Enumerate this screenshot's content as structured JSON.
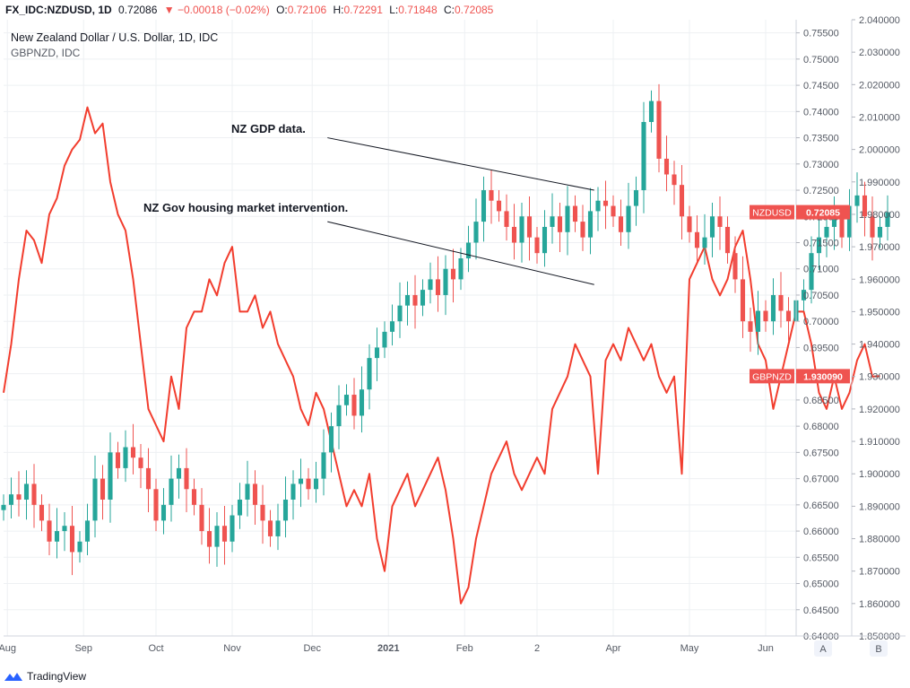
{
  "header": {
    "symbol": "FX_IDC:NZDUSD, 1D",
    "last": "0.72086",
    "change": "▼ −0.00018 (−0.02%)",
    "open_label": "O:",
    "open": "0.72106",
    "high_label": "H:",
    "high": "0.72291",
    "low_label": "L:",
    "low": "0.71848",
    "close_label": "C:",
    "close": "0.72085"
  },
  "legend": {
    "main": "New Zealand Dollar / U.S. Dollar, 1D, IDC",
    "compare": "GBPNZD, IDC"
  },
  "colors": {
    "up": "#26a69a",
    "down": "#ef5350",
    "compare_line": "#f23d2e",
    "grid": "#eef0f3",
    "axis_text": "#555a64"
  },
  "chart_data": {
    "type": "line",
    "title": "New Zealand Dollar / U.S. Dollar, 1D, IDC",
    "axis_a": {
      "name": "A",
      "min": 0.64,
      "max": 0.7575,
      "ticks": [
        "0.64000",
        "0.64500",
        "0.65000",
        "0.65500",
        "0.66000",
        "0.66500",
        "0.67000",
        "0.67500",
        "0.68000",
        "0.68500",
        "0.69000",
        "0.69500",
        "0.70000",
        "0.70500",
        "0.71000",
        "0.71500",
        "0.72000",
        "0.72500",
        "0.73000",
        "0.73500",
        "0.74000",
        "0.74500",
        "0.75000",
        "0.75500"
      ]
    },
    "axis_b": {
      "name": "B",
      "min": 1.85,
      "max": 2.04,
      "ticks": [
        "1.850000",
        "1.860000",
        "1.870000",
        "1.880000",
        "1.890000",
        "1.900000",
        "1.910000",
        "1.920000",
        "1.930000",
        "1.940000",
        "1.950000",
        "1.960000",
        "1.970000",
        "1.980000",
        "1.990000",
        "2.000000",
        "2.010000",
        "2.020000",
        "2.030000",
        "2.040000"
      ]
    },
    "x_axis_labels": [
      "Aug",
      "Sep",
      "Oct",
      "Nov",
      "Dec",
      "2021",
      "Feb",
      "2",
      "Apr",
      "May",
      "Jun"
    ],
    "x_axis_pos": [
      0.5,
      10.5,
      20,
      30,
      40.5,
      50.5,
      60.5,
      70,
      80,
      90,
      100
    ],
    "series": [
      {
        "name": "NZDUSD",
        "axis": "A",
        "kind": "candlestick",
        "close": [
          0.665,
          0.667,
          0.666,
          0.669,
          0.665,
          0.662,
          0.658,
          0.66,
          0.661,
          0.656,
          0.658,
          0.662,
          0.67,
          0.666,
          0.675,
          0.672,
          0.676,
          0.674,
          0.672,
          0.668,
          0.662,
          0.665,
          0.67,
          0.672,
          0.668,
          0.665,
          0.66,
          0.657,
          0.661,
          0.658,
          0.663,
          0.666,
          0.669,
          0.665,
          0.662,
          0.659,
          0.662,
          0.666,
          0.669,
          0.67,
          0.668,
          0.67,
          0.675,
          0.68,
          0.684,
          0.686,
          0.682,
          0.687,
          0.693,
          0.695,
          0.698,
          0.7,
          0.703,
          0.705,
          0.703,
          0.706,
          0.708,
          0.705,
          0.71,
          0.708,
          0.712,
          0.715,
          0.719,
          0.725,
          0.723,
          0.721,
          0.718,
          0.715,
          0.72,
          0.716,
          0.713,
          0.718,
          0.72,
          0.717,
          0.722,
          0.719,
          0.716,
          0.721,
          0.723,
          0.722,
          0.72,
          0.717,
          0.722,
          0.725,
          0.738,
          0.742,
          0.731,
          0.728,
          0.726,
          0.72,
          0.717,
          0.714,
          0.716,
          0.72,
          0.718,
          0.713,
          0.708,
          0.7,
          0.698,
          0.702,
          0.7,
          0.705,
          0.702,
          0.7,
          0.704,
          0.706,
          0.713,
          0.716,
          0.718,
          0.72,
          0.716,
          0.722,
          0.724,
          0.72,
          0.716,
          0.718,
          0.7208
        ]
      },
      {
        "name": "GBPNZD",
        "axis": "B",
        "kind": "line",
        "values": [
          1.925,
          1.94,
          1.96,
          1.975,
          1.972,
          1.965,
          1.98,
          1.985,
          1.995,
          2.0,
          2.003,
          2.013,
          2.005,
          2.008,
          1.99,
          1.98,
          1.975,
          1.96,
          1.94,
          1.92,
          1.915,
          1.91,
          1.93,
          1.92,
          1.945,
          1.95,
          1.95,
          1.96,
          1.955,
          1.965,
          1.97,
          1.95,
          1.95,
          1.955,
          1.945,
          1.95,
          1.94,
          1.935,
          1.93,
          1.92,
          1.915,
          1.925,
          1.92,
          1.91,
          1.9,
          1.89,
          1.895,
          1.89,
          1.9,
          1.88,
          1.87,
          1.89,
          1.895,
          1.9,
          1.89,
          1.895,
          1.9,
          1.905,
          1.895,
          1.88,
          1.86,
          1.865,
          1.88,
          1.89,
          1.9,
          1.905,
          1.91,
          1.9,
          1.895,
          1.9,
          1.905,
          1.9,
          1.92,
          1.925,
          1.93,
          1.94,
          1.935,
          1.93,
          1.9,
          1.935,
          1.94,
          1.935,
          1.945,
          1.94,
          1.935,
          1.94,
          1.93,
          1.925,
          1.93,
          1.9,
          1.96,
          1.965,
          1.97,
          1.96,
          1.955,
          1.96,
          1.97,
          1.975,
          1.96,
          1.94,
          1.935,
          1.92,
          1.93,
          1.94,
          1.95,
          1.95,
          1.94,
          1.925,
          1.92,
          1.93,
          1.92,
          1.925,
          1.935,
          1.94,
          1.93,
          1.9301
        ]
      }
    ],
    "last_value_labels": [
      {
        "name": "NZDUSD",
        "value": "0.72085",
        "color": "#ef5350"
      },
      {
        "name": "GBPNZD",
        "value": "1.930090",
        "color": "#ef5350"
      }
    ],
    "annotations": [
      {
        "text": "NZ GDP data.",
        "line_from": [
          42.5,
          0.735
        ],
        "line_to": [
          77.5,
          0.725
        ]
      },
      {
        "text": "NZ Gov housing market intervention.",
        "line_from": [
          42.5,
          0.719
        ],
        "line_to": [
          77.5,
          0.707
        ]
      }
    ],
    "grid": true,
    "legend_position": "top-left"
  },
  "footer": {
    "brand": "TradingView"
  }
}
